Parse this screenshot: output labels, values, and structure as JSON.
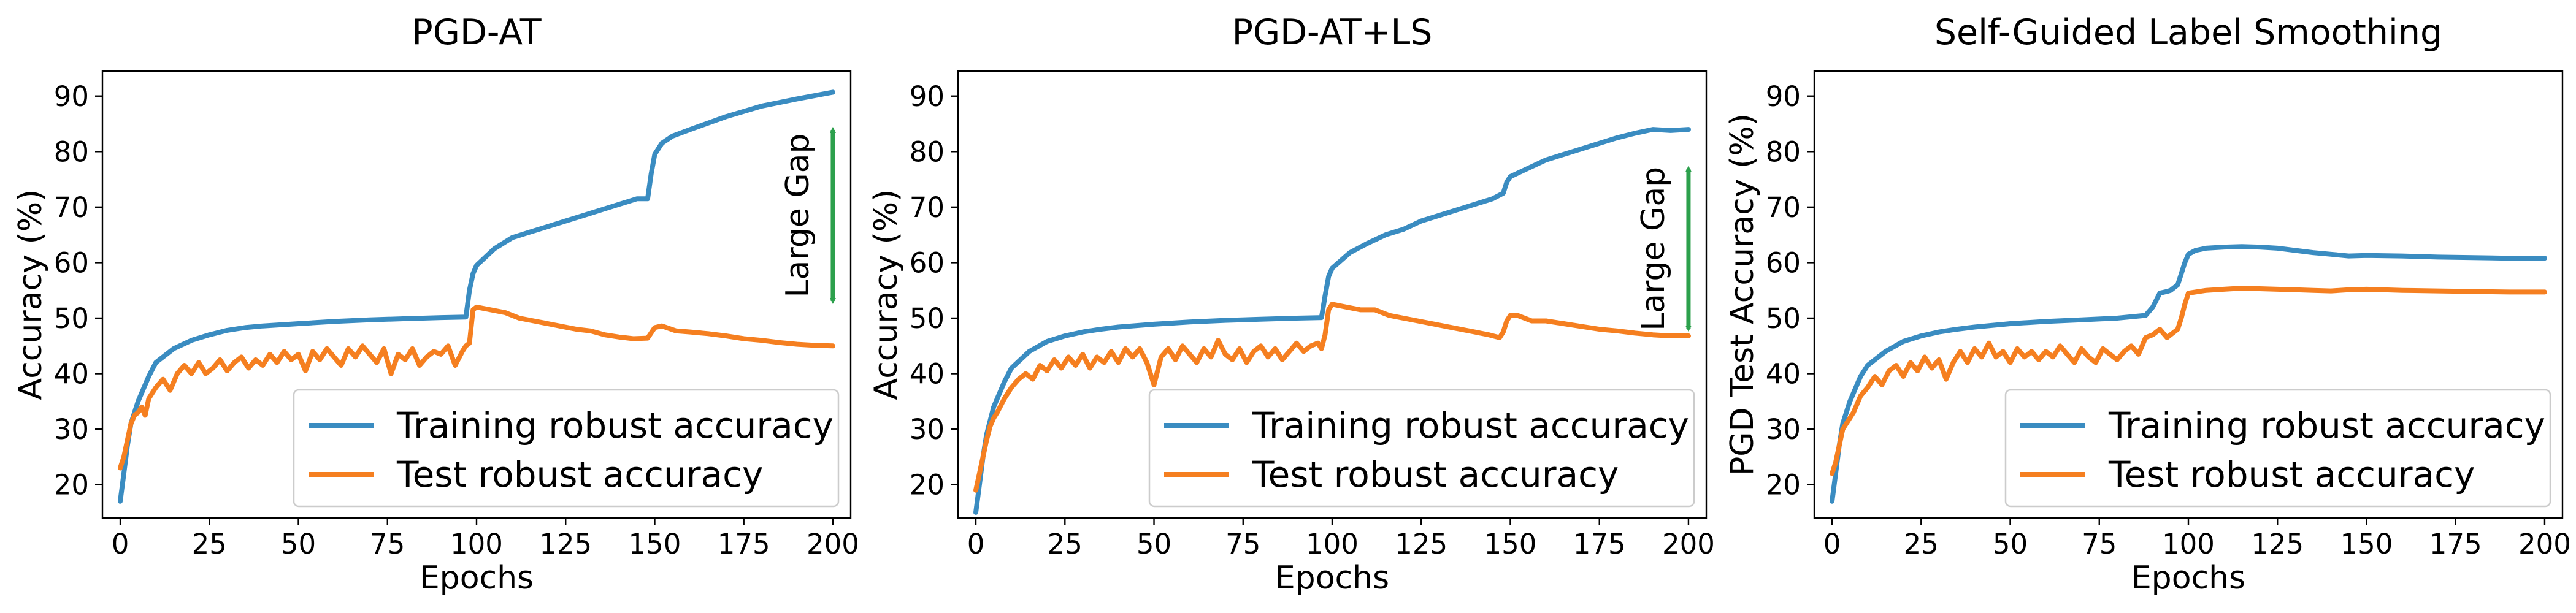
{
  "colors": {
    "train": "#3a8cc1",
    "test": "#f57f20",
    "gap_arrow": "#2ca04c"
  },
  "chart_data": [
    {
      "type": "line",
      "title": "PGD-AT",
      "xlabel": "Epochs",
      "ylabel": "Accuracy (%)",
      "xlim": [
        -5,
        205
      ],
      "ylim": [
        14,
        94.5
      ],
      "xticks": [
        0,
        25,
        50,
        75,
        100,
        125,
        150,
        175,
        200
      ],
      "yticks": [
        20,
        30,
        40,
        50,
        60,
        70,
        80,
        90
      ],
      "grid": false,
      "legend": "lower-right",
      "annotation": {
        "text": "Large Gap",
        "y_from": 52,
        "y_to": 85,
        "x": 200
      },
      "series": [
        {
          "name": "Training robust accuracy",
          "color_key": "train",
          "x": [
            0,
            1,
            2,
            3,
            5,
            8,
            10,
            15,
            20,
            25,
            30,
            35,
            40,
            50,
            60,
            70,
            80,
            90,
            97,
            98,
            99,
            100,
            105,
            110,
            115,
            120,
            125,
            130,
            135,
            140,
            145,
            148,
            149,
            150,
            152,
            155,
            160,
            170,
            180,
            190,
            200
          ],
          "y": [
            17,
            22,
            27,
            31,
            35,
            39.5,
            42,
            44.5,
            46,
            47,
            47.8,
            48.3,
            48.6,
            49,
            49.4,
            49.7,
            49.9,
            50.1,
            50.2,
            55,
            58,
            59.5,
            62.5,
            64.5,
            65.5,
            66.5,
            67.5,
            68.5,
            69.5,
            70.5,
            71.5,
            71.5,
            76,
            79.5,
            81.5,
            82.8,
            84,
            86.3,
            88.2,
            89.5,
            90.7
          ]
        },
        {
          "name": "Test robust accuracy",
          "color_key": "test",
          "x": [
            0,
            1,
            2,
            3,
            4,
            5,
            6,
            7,
            8,
            9,
            10,
            12,
            14,
            16,
            18,
            20,
            22,
            24,
            26,
            28,
            30,
            32,
            34,
            36,
            38,
            40,
            42,
            44,
            46,
            48,
            50,
            52,
            54,
            56,
            58,
            60,
            62,
            64,
            66,
            68,
            70,
            72,
            74,
            76,
            78,
            80,
            82,
            84,
            86,
            88,
            90,
            92,
            94,
            96,
            97,
            98,
            99,
            100,
            104,
            108,
            112,
            116,
            120,
            124,
            128,
            132,
            136,
            140,
            144,
            148,
            150,
            152,
            156,
            160,
            165,
            170,
            175,
            180,
            185,
            190,
            195,
            200
          ],
          "y": [
            23,
            25,
            28,
            31,
            32.5,
            33,
            34,
            32.5,
            35.5,
            36.5,
            37.5,
            39,
            37,
            40,
            41.5,
            40,
            42,
            40,
            41,
            42.5,
            40.5,
            42,
            43,
            41,
            42.5,
            41.5,
            43.5,
            42,
            44,
            42.5,
            43.5,
            40.5,
            44,
            42.5,
            44.5,
            43,
            41.5,
            44.5,
            43,
            45,
            43.5,
            42,
            44.5,
            40,
            43.5,
            42.5,
            44.5,
            41.5,
            43,
            44,
            43.5,
            45,
            41.5,
            44,
            45,
            45.5,
            51.5,
            52,
            51.5,
            51,
            50,
            49.5,
            49,
            48.5,
            48,
            47.7,
            47,
            46.6,
            46.3,
            46.4,
            48.3,
            48.6,
            47.7,
            47.5,
            47.2,
            46.8,
            46.3,
            46,
            45.6,
            45.3,
            45.1,
            45
          ]
        }
      ]
    },
    {
      "type": "line",
      "title": "PGD-AT+LS",
      "xlabel": "Epochs",
      "ylabel": "Accuracy (%)",
      "xlim": [
        -5,
        205
      ],
      "ylim": [
        14,
        94.5
      ],
      "xticks": [
        0,
        25,
        50,
        75,
        100,
        125,
        150,
        175,
        200
      ],
      "yticks": [
        20,
        30,
        40,
        50,
        60,
        70,
        80,
        90
      ],
      "grid": false,
      "legend": "lower-right",
      "annotation": {
        "text": "Large Gap",
        "y_from": 47,
        "y_to": 78,
        "x": 200
      },
      "series": [
        {
          "name": "Training robust accuracy",
          "color_key": "train",
          "x": [
            0,
            1,
            2,
            3,
            5,
            8,
            10,
            15,
            20,
            25,
            30,
            35,
            40,
            50,
            60,
            70,
            80,
            90,
            97,
            98,
            99,
            100,
            105,
            110,
            115,
            120,
            125,
            130,
            135,
            140,
            145,
            148,
            149,
            150,
            155,
            160,
            170,
            180,
            185,
            190,
            195,
            200
          ],
          "y": [
            15,
            20,
            25,
            29,
            34,
            38.5,
            41,
            44,
            45.8,
            46.8,
            47.5,
            48,
            48.4,
            48.9,
            49.3,
            49.6,
            49.8,
            50,
            50.1,
            54,
            57.5,
            59,
            61.8,
            63.5,
            65,
            66,
            67.5,
            68.5,
            69.5,
            70.5,
            71.5,
            72.5,
            74.5,
            75.5,
            77,
            78.5,
            80.5,
            82.5,
            83.3,
            84,
            83.8,
            84
          ]
        },
        {
          "name": "Test robust accuracy",
          "color_key": "test",
          "x": [
            0,
            1,
            2,
            3,
            4,
            5,
            6,
            8,
            10,
            12,
            14,
            16,
            18,
            20,
            22,
            24,
            26,
            28,
            30,
            32,
            34,
            36,
            38,
            40,
            42,
            44,
            46,
            48,
            50,
            52,
            54,
            56,
            58,
            60,
            62,
            64,
            66,
            68,
            70,
            72,
            74,
            76,
            78,
            80,
            82,
            84,
            86,
            88,
            90,
            92,
            94,
            96,
            97,
            98,
            99,
            100,
            104,
            108,
            112,
            116,
            120,
            124,
            128,
            132,
            136,
            140,
            144,
            147,
            148,
            149,
            150,
            152,
            156,
            160,
            165,
            170,
            175,
            180,
            185,
            190,
            195,
            200
          ],
          "y": [
            19,
            22,
            25,
            28,
            30.5,
            32,
            33,
            35.5,
            37.5,
            39,
            40,
            39,
            41.5,
            40.5,
            42.5,
            41,
            43,
            41.5,
            43.5,
            41,
            43,
            42,
            44,
            42,
            44.5,
            43,
            44.5,
            42,
            38,
            43,
            44.5,
            42.5,
            45,
            43.5,
            42,
            44.5,
            43,
            46,
            43.5,
            42.5,
            44.5,
            42,
            44,
            45,
            43,
            44.5,
            42.5,
            44,
            45.5,
            44,
            45,
            45.5,
            44.5,
            47,
            51.5,
            52.5,
            52,
            51.5,
            51.5,
            50.5,
            50,
            49.5,
            49,
            48.5,
            48,
            47.5,
            47,
            46.5,
            47.5,
            49.5,
            50.5,
            50.5,
            49.5,
            49.5,
            49,
            48.5,
            48,
            47.7,
            47.3,
            47,
            46.8,
            46.8
          ]
        }
      ]
    },
    {
      "type": "line",
      "title": "Self-Guided Label Smoothing",
      "xlabel": "Epochs",
      "ylabel": "PGD Test Accuracy (%)",
      "xlim": [
        -5,
        205
      ],
      "ylim": [
        14,
        94.5
      ],
      "xticks": [
        0,
        25,
        50,
        75,
        100,
        125,
        150,
        175,
        200
      ],
      "yticks": [
        20,
        30,
        40,
        50,
        60,
        70,
        80,
        90
      ],
      "grid": false,
      "legend": "lower-right",
      "series": [
        {
          "name": "Training robust accuracy",
          "color_key": "train",
          "x": [
            0,
            1,
            2,
            3,
            5,
            8,
            10,
            15,
            20,
            25,
            30,
            35,
            40,
            50,
            60,
            70,
            80,
            88,
            90,
            92,
            94,
            95,
            97,
            99,
            100,
            102,
            105,
            110,
            115,
            120,
            125,
            130,
            135,
            140,
            145,
            150,
            160,
            170,
            180,
            190,
            200
          ],
          "y": [
            17,
            22,
            27,
            31,
            35,
            39.5,
            41.5,
            44,
            45.8,
            46.8,
            47.5,
            48,
            48.4,
            49,
            49.4,
            49.7,
            50,
            50.5,
            52,
            54.5,
            54.8,
            55,
            56,
            60,
            61.5,
            62.2,
            62.6,
            62.8,
            62.9,
            62.8,
            62.6,
            62.2,
            61.8,
            61.5,
            61.2,
            61.3,
            61.2,
            61,
            60.9,
            60.8,
            60.8
          ]
        },
        {
          "name": "Test robust accuracy",
          "color_key": "test",
          "x": [
            0,
            1,
            2,
            3,
            4,
            5,
            6,
            8,
            10,
            12,
            14,
            16,
            18,
            20,
            22,
            24,
            26,
            28,
            30,
            32,
            34,
            36,
            38,
            40,
            42,
            44,
            46,
            48,
            50,
            52,
            54,
            56,
            58,
            60,
            62,
            64,
            66,
            68,
            70,
            72,
            74,
            76,
            78,
            80,
            82,
            84,
            86,
            88,
            90,
            92,
            94,
            96,
            97,
            98,
            99,
            100,
            105,
            110,
            115,
            120,
            125,
            130,
            135,
            140,
            145,
            150,
            160,
            170,
            180,
            190,
            200
          ],
          "y": [
            22,
            24,
            27,
            30,
            31,
            32,
            33,
            36,
            37.5,
            39.5,
            38,
            40.5,
            41.5,
            39.5,
            42,
            40.5,
            43,
            41,
            42.5,
            39,
            42,
            44,
            42,
            44.5,
            43,
            45.5,
            43,
            44,
            42,
            44.5,
            43,
            44,
            42.5,
            44,
            43,
            45,
            43.5,
            42,
            44.5,
            43,
            42,
            44.5,
            43.5,
            42.5,
            44,
            45,
            43.5,
            46.5,
            47,
            48,
            46.5,
            47.5,
            48,
            50,
            52.5,
            54.5,
            55,
            55.2,
            55.4,
            55.3,
            55.2,
            55.1,
            55,
            54.9,
            55.1,
            55.2,
            55,
            54.9,
            54.8,
            54.7,
            54.7
          ]
        }
      ]
    }
  ]
}
